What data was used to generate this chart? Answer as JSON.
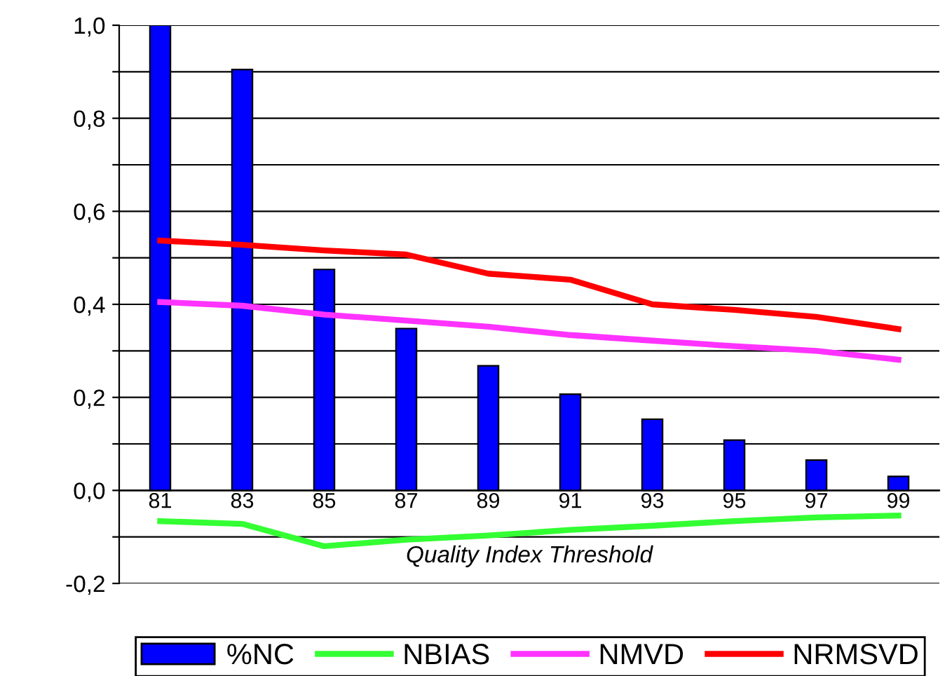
{
  "chart_data": {
    "type": "bar",
    "xlabel": "Quality Index Threshold",
    "categories": [
      "81",
      "83",
      "85",
      "87",
      "89",
      "91",
      "93",
      "95",
      "97",
      "99"
    ],
    "series": [
      {
        "name": "%NC",
        "color": "#0000ff",
        "values": [
          1.0,
          0.905,
          0.475,
          0.348,
          0.268,
          0.207,
          0.153,
          0.108,
          0.065,
          0.03
        ]
      },
      {
        "name": "NBIAS",
        "type": "line",
        "color": "#33ff33",
        "values": [
          -0.066,
          -0.072,
          -0.12,
          -0.106,
          -0.097,
          -0.085,
          -0.076,
          -0.066,
          -0.058,
          -0.054
        ]
      },
      {
        "name": "NMVD",
        "type": "line",
        "color": "#ff33ff",
        "values": [
          0.405,
          0.397,
          0.378,
          0.365,
          0.352,
          0.334,
          0.322,
          0.31,
          0.3,
          0.281
        ]
      },
      {
        "name": "NRMSVD",
        "type": "line",
        "color": "#ff0000",
        "values": [
          0.537,
          0.528,
          0.516,
          0.507,
          0.466,
          0.453,
          0.4,
          0.388,
          0.373,
          0.347
        ]
      }
    ],
    "ylim": [
      -0.2,
      1.0
    ],
    "yticks": [
      {
        "value": -0.2,
        "label": "-0,2"
      },
      {
        "value": -0.1,
        "label": null
      },
      {
        "value": 0.0,
        "label": "0,0"
      },
      {
        "value": 0.1,
        "label": null
      },
      {
        "value": 0.2,
        "label": "0,2"
      },
      {
        "value": 0.3,
        "label": null
      },
      {
        "value": 0.4,
        "label": "0,4"
      },
      {
        "value": 0.5,
        "label": null
      },
      {
        "value": 0.6,
        "label": "0,6"
      },
      {
        "value": 0.7,
        "label": null
      },
      {
        "value": 0.8,
        "label": "0,8"
      },
      {
        "value": 0.9,
        "label": null
      },
      {
        "value": 1.0,
        "label": "1,0"
      }
    ],
    "grid": "y",
    "legend": "bottom",
    "marker": "none",
    "line_style": "solid"
  }
}
